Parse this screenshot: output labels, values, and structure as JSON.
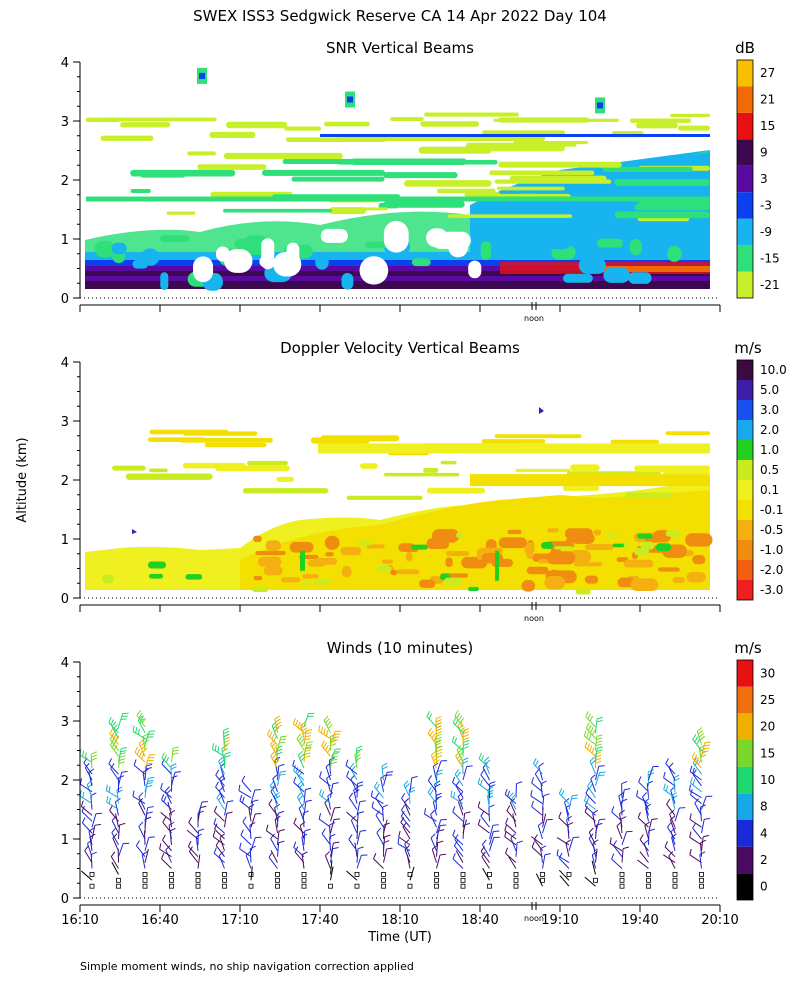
{
  "figure": {
    "title": "SWEX ISS3 Sedgwick Reserve CA  14 Apr 2022 Day 104",
    "ylabel": "Altitude (km)",
    "xlabel": "Time (UT)",
    "footnote": "Simple moment winds, no ship navigation correction applied",
    "noon_label": "noon"
  },
  "chart_data": [
    {
      "type": "heatmap",
      "title": "SNR Vertical Beams",
      "unit": "dB",
      "ylabel": "Altitude (km)",
      "ylim": [
        0,
        4
      ],
      "yticks": [
        "0",
        "1",
        "2",
        "3",
        "4"
      ],
      "colorbar": {
        "labels": [
          "-21",
          "-15",
          "-9",
          "-3",
          "3",
          "9",
          "15",
          "21",
          "27"
        ],
        "colors": [
          "#c8f02a",
          "#2fe07a",
          "#18b4f0",
          "#0a40f0",
          "#5a0aa0",
          "#3c0850",
          "#e81010",
          "#f06a08",
          "#f8c000"
        ]
      }
    },
    {
      "type": "heatmap",
      "title": "Doppler Velocity Vertical Beams",
      "unit": "m/s",
      "ylabel": "Altitude (km)",
      "ylim": [
        0,
        4
      ],
      "yticks": [
        "0",
        "1",
        "2",
        "3",
        "4"
      ],
      "colorbar": {
        "labels": [
          "-3.0",
          "-2.0",
          "-1.0",
          "-0.5",
          "-0.1",
          "0.1",
          "0.5",
          "1.0",
          "2.0",
          "3.0",
          "5.0",
          "10.0"
        ],
        "colors": [
          "#f02020",
          "#f06010",
          "#f08c10",
          "#f4b010",
          "#f4e000",
          "#f0f020",
          "#c8ec20",
          "#22d022",
          "#18a8f0",
          "#1850f0",
          "#3c1ca8",
          "#3c0a40"
        ]
      }
    },
    {
      "type": "scatter",
      "title": "Winds (10 minutes)",
      "unit": "m/s",
      "ylabel": "Altitude (km)",
      "xlabel": "Time (UT)",
      "ylim": [
        0,
        4
      ],
      "yticks": [
        "0",
        "1",
        "2",
        "3",
        "4"
      ],
      "x_ticklabels": [
        "16:10",
        "16:40",
        "17:10",
        "17:40",
        "18:10",
        "18:40",
        "19:10",
        "19:40",
        "20:10"
      ],
      "colorbar": {
        "labels": [
          "0",
          "2",
          "4",
          "8",
          "10",
          "15",
          "20",
          "25",
          "30"
        ],
        "colors": [
          "#000000",
          "#4a0a60",
          "#1a2ad8",
          "#18a8e8",
          "#20d870",
          "#7ad828",
          "#f0b000",
          "#f07010",
          "#e81010"
        ]
      }
    }
  ]
}
